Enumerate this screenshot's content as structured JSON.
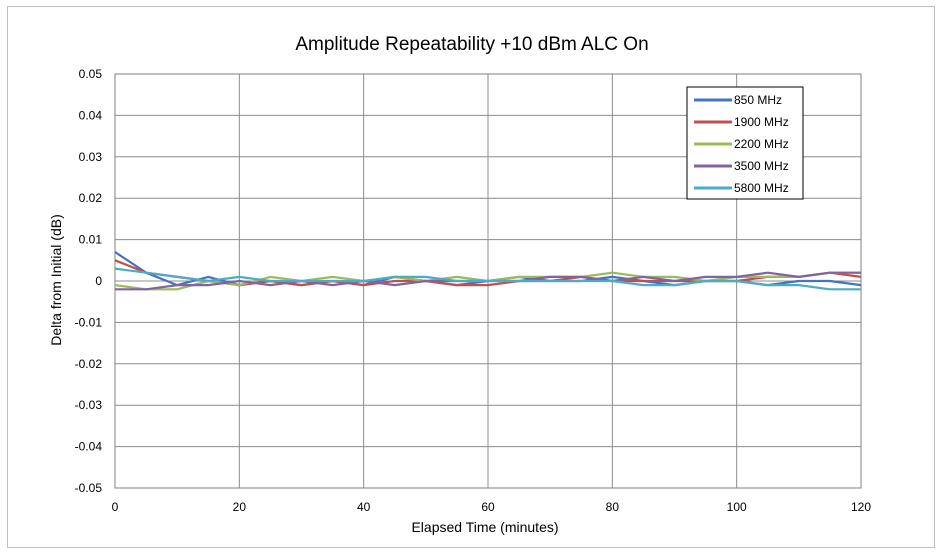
{
  "chart_data": {
    "type": "line",
    "title": "Amplitude Repeatability +10 dBm  ALC On",
    "xlabel": "Elapsed Time (minutes)",
    "ylabel": "Delta from Initial (dB)",
    "xlim": [
      0,
      120
    ],
    "ylim": [
      -0.05,
      0.05
    ],
    "x_ticks": [
      0,
      20,
      40,
      60,
      80,
      100,
      120
    ],
    "y_ticks": [
      0.05,
      0.04,
      0.03,
      0.02,
      0.01,
      0,
      -0.01,
      -0.02,
      -0.03,
      -0.04,
      -0.05
    ],
    "y_tick_labels": [
      "0.05",
      "0.04",
      "0.03",
      "0.02",
      "0.01",
      "0",
      "-0.01",
      "-0.02",
      "-0.03",
      "-0.04",
      "-0.05"
    ],
    "grid": true,
    "legend_position": "top-right",
    "x": [
      0,
      5,
      10,
      15,
      20,
      25,
      30,
      35,
      40,
      45,
      50,
      55,
      60,
      65,
      70,
      75,
      80,
      85,
      90,
      95,
      100,
      105,
      110,
      115,
      120
    ],
    "series": [
      {
        "name": "850 MHz",
        "color": "#4472c4",
        "values": [
          0.007,
          0.002,
          -0.001,
          0.001,
          -0.001,
          0.0,
          -0.001,
          0.0,
          -0.001,
          0.001,
          0.0,
          -0.001,
          0.0,
          0.001,
          0.0,
          0.0,
          0.001,
          0.0,
          -0.001,
          0.0,
          0.0,
          -0.001,
          0.0,
          0.0,
          -0.001
        ]
      },
      {
        "name": "1900 MHz",
        "color": "#c0504d",
        "values": [
          0.005,
          0.002,
          0.001,
          0.0,
          -0.001,
          0.0,
          -0.001,
          0.0,
          -0.001,
          0.0,
          0.0,
          -0.001,
          -0.001,
          0.0,
          0.0,
          0.001,
          0.0,
          0.0,
          0.0,
          0.0,
          0.0,
          0.001,
          0.001,
          0.002,
          0.001
        ]
      },
      {
        "name": "2200 MHz",
        "color": "#9bbb59",
        "values": [
          -0.001,
          -0.002,
          -0.002,
          0.0,
          -0.001,
          0.001,
          0.0,
          0.001,
          0.0,
          0.001,
          0.0,
          0.001,
          0.0,
          0.001,
          0.001,
          0.001,
          0.002,
          0.001,
          0.001,
          0.0,
          0.001,
          0.001,
          0.001,
          0.002,
          0.002
        ]
      },
      {
        "name": "3500 MHz",
        "color": "#8064a2",
        "values": [
          -0.002,
          -0.002,
          -0.001,
          -0.001,
          0.0,
          -0.001,
          0.0,
          -0.001,
          0.0,
          -0.001,
          0.0,
          0.0,
          0.0,
          0.0,
          0.001,
          0.001,
          0.0,
          0.001,
          0.0,
          0.001,
          0.001,
          0.002,
          0.001,
          0.002,
          0.002
        ]
      },
      {
        "name": "5800 MHz",
        "color": "#4bacc6",
        "values": [
          0.003,
          0.002,
          0.001,
          0.0,
          0.001,
          0.0,
          0.0,
          0.0,
          0.0,
          0.001,
          0.001,
          0.0,
          0.0,
          0.0,
          0.0,
          0.0,
          0.0,
          -0.001,
          -0.001,
          0.0,
          0.0,
          -0.001,
          -0.001,
          -0.002,
          -0.002
        ]
      }
    ]
  }
}
